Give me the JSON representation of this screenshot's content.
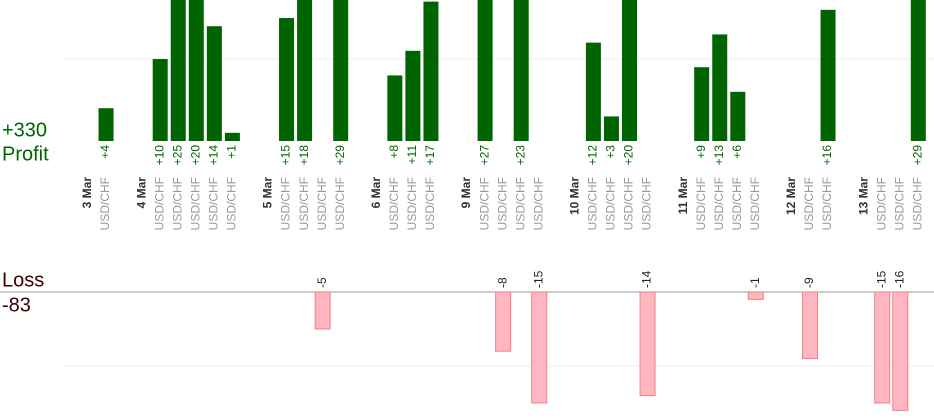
{
  "chart_data": {
    "type": "bar",
    "profit_total": "+330",
    "profit_label": "Profit",
    "loss_label": "Loss",
    "loss_total": "-83",
    "profit_color": "#006400",
    "loss_color": "#ffb6c1",
    "ylim": [
      0,
      17.2
    ],
    "yticks": [
      10
    ],
    "y2lim": [
      -17.3,
      0
    ],
    "y2ticks": [
      -10
    ],
    "grid": true,
    "groups": [
      {
        "date": "3 Mar",
        "symbols": [
          "USD/CHF"
        ],
        "values": [
          4
        ],
        "value_labels": [
          "+4"
        ]
      },
      {
        "date": "4 Mar",
        "symbols": [
          "USD/CHF",
          "USD/CHF",
          "USD/CHF",
          "USD/CHF",
          "USD/CHF"
        ],
        "values": [
          10,
          25,
          20,
          14,
          1
        ],
        "value_labels": [
          "+10",
          "+25",
          "+20",
          "+14",
          "+1"
        ]
      },
      {
        "date": "5 Mar",
        "symbols": [
          "USD/CHF",
          "USD/CHF",
          "USD/CHF",
          "USD/CHF"
        ],
        "values": [
          15,
          18,
          -5,
          29
        ],
        "value_labels": [
          "+15",
          "+18",
          "-5",
          "+29"
        ]
      },
      {
        "date": "6 Mar",
        "symbols": [
          "USD/CHF",
          "USD/CHF",
          "USD/CHF"
        ],
        "values": [
          8,
          11,
          17
        ],
        "value_labels": [
          "+8",
          "+11",
          "+17"
        ]
      },
      {
        "date": "9 Mar",
        "symbols": [
          "USD/CHF",
          "USD/CHF",
          "USD/CHF",
          "USD/CHF"
        ],
        "values": [
          27,
          -8,
          23,
          -15
        ],
        "value_labels": [
          "+27",
          "-8",
          "+23",
          "-15"
        ]
      },
      {
        "date": "10 Mar",
        "symbols": [
          "USD/CHF",
          "USD/CHF",
          "USD/CHF",
          "USD/CHF"
        ],
        "values": [
          12,
          3,
          20,
          -14
        ],
        "value_labels": [
          "+12",
          "+3",
          "+20",
          "-14"
        ]
      },
      {
        "date": "11 Mar",
        "symbols": [
          "USD/CHF",
          "USD/CHF",
          "USD/CHF",
          "USD/CHF"
        ],
        "values": [
          9,
          13,
          6,
          -1
        ],
        "value_labels": [
          "+9",
          "+13",
          "+6",
          "-1"
        ]
      },
      {
        "date": "12 Mar",
        "symbols": [
          "USD/CHF",
          "USD/CHF"
        ],
        "values": [
          -9,
          16
        ],
        "value_labels": [
          "-9",
          "+16"
        ]
      },
      {
        "date": "13 Mar",
        "symbols": [
          "USD/CHF",
          "USD/CHF",
          "USD/CHF"
        ],
        "values": [
          -15,
          -16,
          29
        ],
        "value_labels": [
          "-15",
          "-16",
          "+29"
        ]
      }
    ]
  }
}
